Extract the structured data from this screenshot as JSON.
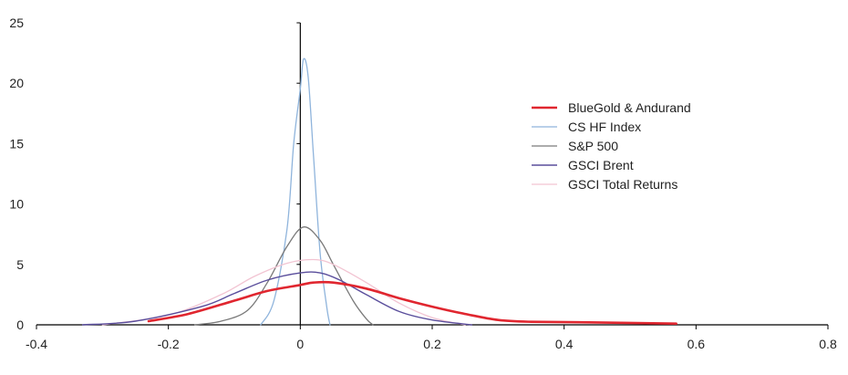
{
  "chart_data": {
    "type": "line",
    "title": "",
    "xlabel": "",
    "ylabel": "",
    "xlim": [
      -0.4,
      0.8
    ],
    "ylim": [
      0,
      25
    ],
    "x_ticks": [
      -0.4,
      -0.2,
      0,
      0.2,
      0.4,
      0.6,
      0.8
    ],
    "x_tick_labels": [
      "-0.4",
      "-0.2",
      "0",
      "0.2",
      "0.4",
      "0.6",
      "0.8"
    ],
    "y_ticks": [
      0,
      5,
      10,
      15,
      20,
      25
    ],
    "y_tick_labels": [
      "0",
      "5",
      "10",
      "15",
      "20",
      "25"
    ],
    "grid": false,
    "legend_position": "right",
    "series": [
      {
        "name": "BlueGold & Andurand",
        "color": "#e0262f",
        "width": 2.6,
        "points": [
          [
            -0.23,
            0.3
          ],
          [
            -0.17,
            0.9
          ],
          [
            -0.1,
            2.0
          ],
          [
            -0.05,
            2.8
          ],
          [
            0,
            3.3
          ],
          [
            0.02,
            3.5
          ],
          [
            0.05,
            3.5
          ],
          [
            0.1,
            3.0
          ],
          [
            0.15,
            2.2
          ],
          [
            0.2,
            1.5
          ],
          [
            0.25,
            0.9
          ],
          [
            0.3,
            0.4
          ],
          [
            0.35,
            0.25
          ],
          [
            0.45,
            0.2
          ],
          [
            0.57,
            0.1
          ]
        ]
      },
      {
        "name": "CS HF Index",
        "color": "#8fb4dc",
        "width": 1.3,
        "points": [
          [
            -0.06,
            0
          ],
          [
            -0.04,
            2.0
          ],
          [
            -0.02,
            8.0
          ],
          [
            -0.01,
            15.0
          ],
          [
            0,
            19.5
          ],
          [
            0.005,
            22.0
          ],
          [
            0.012,
            20.5
          ],
          [
            0.02,
            14.0
          ],
          [
            0.03,
            6.0
          ],
          [
            0.04,
            1.5
          ],
          [
            0.045,
            0
          ]
        ]
      },
      {
        "name": "S&P 500",
        "color": "#7a7a7a",
        "width": 1.3,
        "points": [
          [
            -0.16,
            0
          ],
          [
            -0.12,
            0.3
          ],
          [
            -0.08,
            1.2
          ],
          [
            -0.05,
            3.5
          ],
          [
            -0.02,
            6.5
          ],
          [
            0.005,
            8.1
          ],
          [
            0.03,
            7.0
          ],
          [
            0.05,
            5.0
          ],
          [
            0.08,
            2.0
          ],
          [
            0.1,
            0.5
          ],
          [
            0.11,
            0
          ]
        ]
      },
      {
        "name": "GSCI Brent",
        "color": "#5a4e9c",
        "width": 1.4,
        "points": [
          [
            -0.33,
            0
          ],
          [
            -0.25,
            0.3
          ],
          [
            -0.15,
            1.5
          ],
          [
            -0.1,
            2.6
          ],
          [
            -0.05,
            3.7
          ],
          [
            0,
            4.3
          ],
          [
            0.03,
            4.3
          ],
          [
            0.06,
            3.7
          ],
          [
            0.1,
            2.5
          ],
          [
            0.15,
            1.1
          ],
          [
            0.2,
            0.4
          ],
          [
            0.26,
            0
          ]
        ]
      },
      {
        "name": "GSCI Total Returns",
        "color": "#f2c4d2",
        "width": 1.3,
        "points": [
          [
            -0.3,
            0
          ],
          [
            -0.2,
            0.8
          ],
          [
            -0.12,
            2.5
          ],
          [
            -0.07,
            4.0
          ],
          [
            -0.02,
            5.1
          ],
          [
            0.02,
            5.4
          ],
          [
            0.05,
            5.0
          ],
          [
            0.1,
            3.5
          ],
          [
            0.15,
            1.8
          ],
          [
            0.2,
            0.6
          ],
          [
            0.25,
            0
          ]
        ]
      }
    ]
  }
}
